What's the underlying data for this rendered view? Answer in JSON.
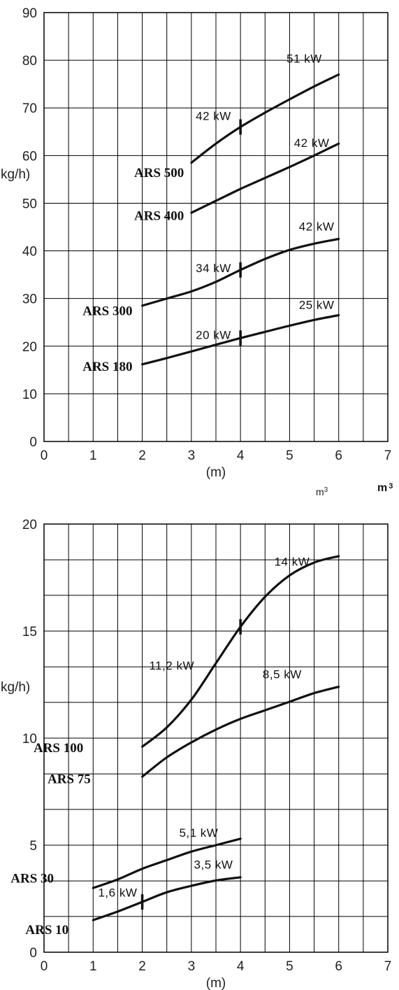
{
  "units": {
    "m3": "m",
    "m3_sup": "3",
    "m3_bold": "m",
    "m3_bold_sup": "3"
  },
  "chart_data": [
    {
      "type": "line",
      "xlabel": "(m)",
      "ylabel": "kg/h)",
      "xlim": [
        0,
        7
      ],
      "ylim": [
        0,
        90
      ],
      "xticks": [
        0,
        1,
        2,
        3,
        4,
        5,
        6,
        7
      ],
      "yticks": [
        0,
        10,
        20,
        30,
        40,
        50,
        60,
        70,
        80,
        90
      ],
      "grid": true,
      "series": [
        {
          "name": "ARS 500",
          "x": [
            3,
            3.5,
            4,
            4.5,
            5,
            5.5,
            6
          ],
          "y": [
            58.5,
            62.5,
            66,
            69,
            71.8,
            74.5,
            77
          ]
        },
        {
          "name": "ARS 400",
          "x": [
            3,
            3.5,
            4,
            4.5,
            5,
            5.5,
            6
          ],
          "y": [
            48,
            50.5,
            53,
            55.3,
            57.6,
            60,
            62.5
          ]
        },
        {
          "name": "ARS 300",
          "x": [
            2,
            2.5,
            3,
            3.5,
            4,
            4.5,
            5,
            5.5,
            6
          ],
          "y": [
            28.5,
            30,
            31.5,
            33.5,
            36,
            38.3,
            40.2,
            41.5,
            42.5
          ]
        },
        {
          "name": "ARS 180",
          "x": [
            2,
            2.5,
            3,
            3.5,
            4,
            4.5,
            5,
            5.5,
            6
          ],
          "y": [
            16.2,
            17.5,
            18.9,
            20.3,
            21.7,
            23,
            24.3,
            25.5,
            26.5
          ]
        }
      ],
      "markers": [
        {
          "series": "ARS 500",
          "x": 4,
          "y": 66
        },
        {
          "series": "ARS 300",
          "x": 4,
          "y": 36
        },
        {
          "series": "ARS 180",
          "x": 4,
          "y": 21.7
        }
      ],
      "annotations": [
        {
          "text": "51 kW",
          "x": 5.3,
          "y": 79.5
        },
        {
          "text": "42 kW",
          "x": 3.45,
          "y": 67.5
        },
        {
          "text": "42 kW",
          "x": 5.45,
          "y": 61.8
        },
        {
          "text": "42 kW",
          "x": 5.55,
          "y": 44.3
        },
        {
          "text": "34 kW",
          "x": 3.45,
          "y": 35.5
        },
        {
          "text": "25 kW",
          "x": 5.55,
          "y": 27.8
        },
        {
          "text": "20 kW",
          "x": 3.45,
          "y": 21.5
        }
      ],
      "labels": [
        {
          "text": "ARS 500",
          "x": 2.85,
          "y": 55.5
        },
        {
          "text": "ARS 400",
          "x": 2.85,
          "y": 46.5
        },
        {
          "text": "ARS 300",
          "x": 1.8,
          "y": 26.5
        },
        {
          "text": "ARS 180",
          "x": 1.8,
          "y": 14.8
        }
      ]
    },
    {
      "type": "line",
      "xlabel": "(m)",
      "ylabel": "kg/h)",
      "xlim": [
        0,
        7
      ],
      "ylim": [
        0,
        20
      ],
      "xticks": [
        0,
        1,
        2,
        3,
        4,
        5,
        6,
        7
      ],
      "yticks": [
        0,
        5,
        10,
        15,
        20
      ],
      "ygrid": [
        0,
        1.67,
        3.33,
        5,
        6.67,
        8.33,
        10,
        11.67,
        13.33,
        15,
        16.67,
        18.33,
        20
      ],
      "grid": true,
      "series": [
        {
          "name": "ARS 100",
          "x": [
            2,
            2.5,
            3,
            3.5,
            4,
            4.5,
            5,
            5.5,
            6
          ],
          "y": [
            9.6,
            10.5,
            11.8,
            13.5,
            15.2,
            16.6,
            17.6,
            18.2,
            18.5
          ]
        },
        {
          "name": "ARS 75",
          "x": [
            2,
            2.5,
            3,
            3.5,
            4,
            4.5,
            5,
            5.5,
            6
          ],
          "y": [
            8.2,
            9.1,
            9.8,
            10.4,
            10.9,
            11.3,
            11.7,
            12.1,
            12.4
          ]
        },
        {
          "name": "ARS 30",
          "x": [
            1,
            1.5,
            2,
            2.5,
            3,
            3.5,
            4
          ],
          "y": [
            3,
            3.4,
            3.9,
            4.3,
            4.7,
            5,
            5.3
          ]
        },
        {
          "name": "ARS 10",
          "x": [
            1,
            1.5,
            2,
            2.5,
            3,
            3.5,
            4
          ],
          "y": [
            1.5,
            1.9,
            2.35,
            2.8,
            3.1,
            3.35,
            3.5
          ]
        }
      ],
      "markers": [
        {
          "series": "ARS 100",
          "x": 4,
          "y": 15.2
        },
        {
          "series": "ARS 10",
          "x": 2,
          "y": 2.35
        }
      ],
      "annotations": [
        {
          "text": "14 kW",
          "x": 5.05,
          "y": 18.05
        },
        {
          "text": "11,2 kW",
          "x": 2.6,
          "y": 13.2
        },
        {
          "text": "8,5 kW",
          "x": 4.85,
          "y": 12.8
        },
        {
          "text": "5,1 kW",
          "x": 3.15,
          "y": 5.4
        },
        {
          "text": "3,5 kW",
          "x": 3.45,
          "y": 3.9
        },
        {
          "text": "1,6 kW",
          "x": 1.5,
          "y": 2.6
        }
      ],
      "labels": [
        {
          "text": "ARS 100",
          "x": 0.8,
          "y": 9.35
        },
        {
          "text": "ARS 75",
          "x": 0.95,
          "y": 7.9
        },
        {
          "text": "ARS 30",
          "x": 0.2,
          "y": 3.25
        },
        {
          "text": "ARS 10",
          "x": 0.5,
          "y": 0.85
        }
      ]
    }
  ]
}
